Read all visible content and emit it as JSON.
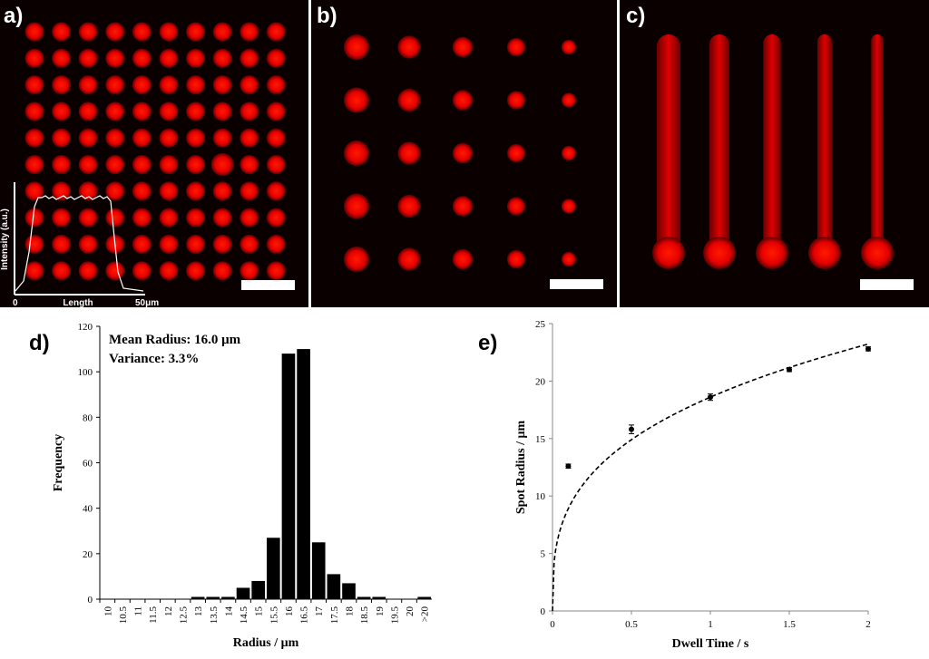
{
  "panels": {
    "a": {
      "label": "a)",
      "grid": {
        "rows": 10,
        "cols": 10
      },
      "inset": {
        "ylabel": "Intensity (a.u.)",
        "x_start": "0",
        "xlabel": "Length",
        "x_end": "50μm"
      }
    },
    "b": {
      "label": "b)",
      "grid": {
        "rows": 5,
        "cols": 5
      },
      "relative_radius_by_column": [
        1.0,
        0.9,
        0.8,
        0.72,
        0.58
      ]
    },
    "c": {
      "label": "c)",
      "lines": 5,
      "relative_line_width_by_column": [
        1.0,
        0.85,
        0.75,
        0.62,
        0.52
      ]
    },
    "colors": {
      "fluor": "#ee0000",
      "background": "#0a0000",
      "scalebar": "#ffffff"
    }
  },
  "chart_data": [
    {
      "id": "d",
      "label": "d)",
      "type": "bar",
      "title": "",
      "annotations": [
        "Mean Radius: 16.0 μm",
        "Variance: 3.3%"
      ],
      "xlabel": "Radius / μm",
      "ylabel": "Frequency",
      "categories": [
        "10",
        "10.5",
        "11",
        "11.5",
        "12",
        "12.5",
        "13",
        "13.5",
        "14",
        "14.5",
        "15",
        "15.5",
        "16",
        "16.5",
        "17",
        "17.5",
        "18",
        "18.5",
        "19",
        "19.5",
        "20",
        ">20"
      ],
      "values": [
        0,
        0,
        0,
        0,
        0,
        0,
        1,
        1,
        1,
        5,
        8,
        27,
        108,
        110,
        25,
        11,
        7,
        1,
        1,
        0,
        0,
        1
      ],
      "ylim": [
        0,
        120
      ],
      "yticks": [
        0,
        20,
        40,
        60,
        80,
        100,
        120
      ],
      "bar_color": "#000000"
    },
    {
      "id": "e",
      "label": "e)",
      "type": "scatter",
      "title": "",
      "xlabel": "Dwell Time / s",
      "ylabel": "Spot Radius / μm",
      "xlim": [
        0,
        2
      ],
      "ylim": [
        0,
        25
      ],
      "xticks": [
        0,
        0.5,
        1,
        1.5,
        2
      ],
      "yticks": [
        0,
        5,
        10,
        15,
        20,
        25
      ],
      "points": [
        {
          "x": 0.1,
          "y": 12.6,
          "err": 0.1
        },
        {
          "x": 0.5,
          "y": 15.8,
          "err": 0.3
        },
        {
          "x": 1.0,
          "y": 18.6,
          "err": 0.2
        },
        {
          "x": 1.5,
          "y": 21.0,
          "err": 0.1
        },
        {
          "x": 2.0,
          "y": 22.8,
          "err": 0.1
        }
      ],
      "fit": {
        "style": "dashed",
        "form": "power",
        "a": 18.6,
        "b": 0.32
      }
    }
  ]
}
